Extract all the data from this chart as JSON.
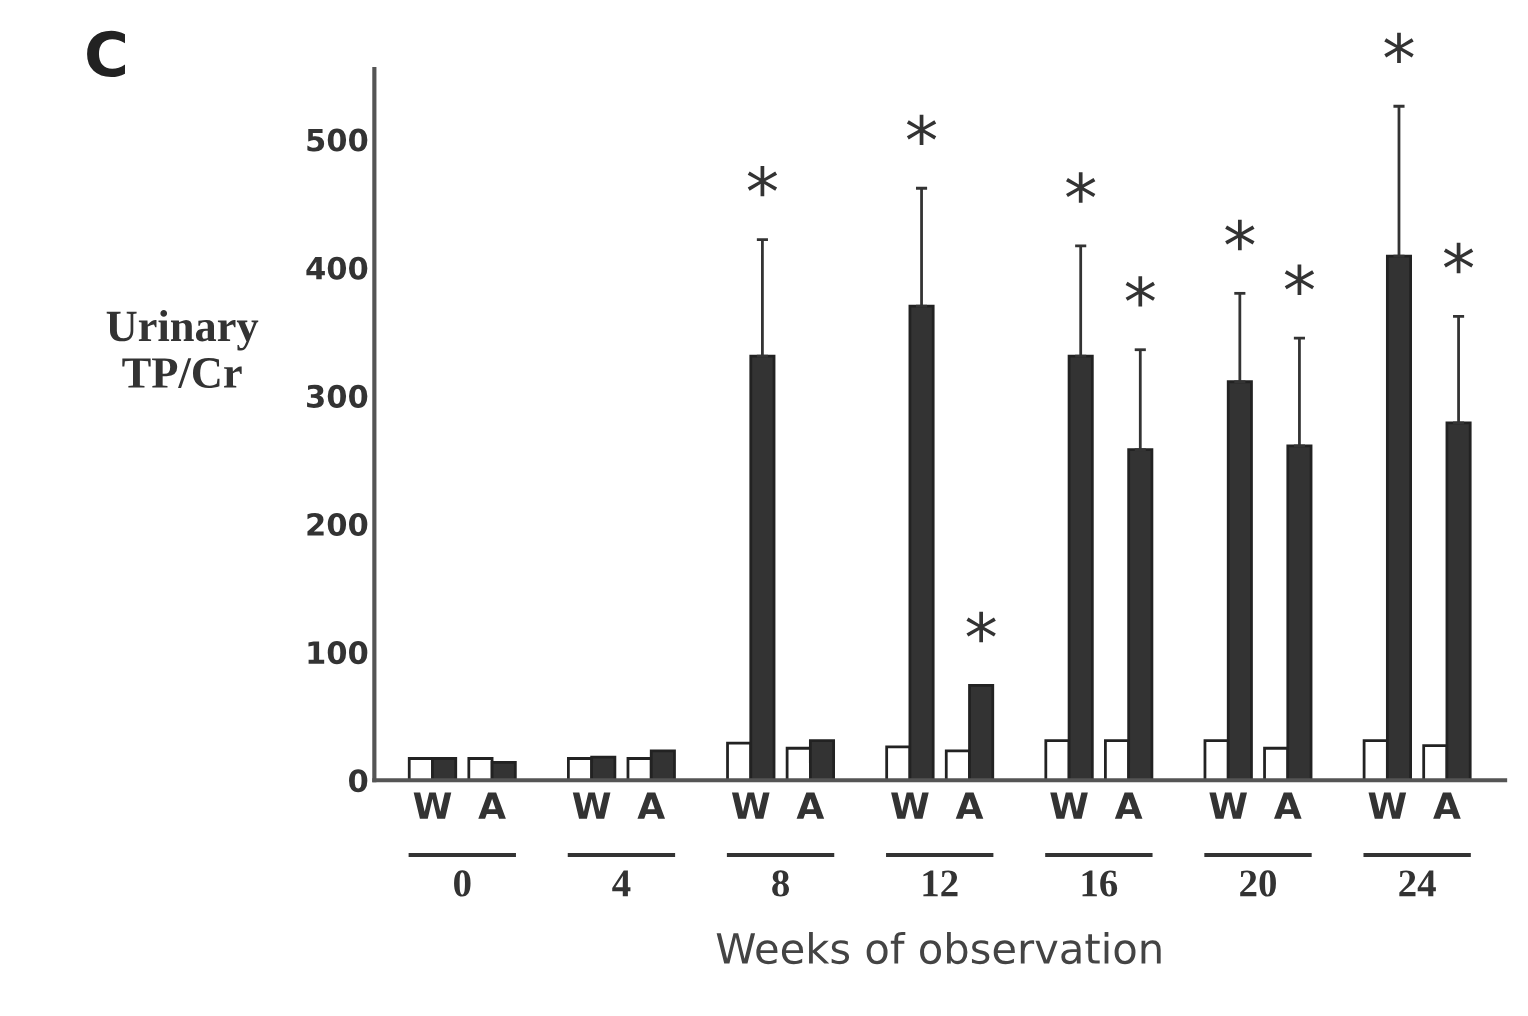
{
  "chart_data": {
    "type": "bar",
    "title": "C",
    "ylabel": "Urinary\nTP/Cr",
    "xlabel": "Weeks of observation",
    "categories": [
      "W",
      "A",
      "W",
      "A",
      "W",
      "A",
      "W",
      "A",
      "W",
      "A",
      "W",
      "A",
      "W",
      "A"
    ],
    "series": [
      {
        "color": "#ffffff",
        "values": [
          17,
          17,
          17,
          17,
          29,
          25,
          26,
          23,
          31,
          31,
          31,
          25,
          31,
          27
        ]
      },
      {
        "color": "#333333",
        "values": [
          17,
          14,
          18,
          23,
          331,
          31,
          370,
          74,
          331,
          258,
          311,
          261,
          409,
          279
        ],
        "errors": [
          null,
          null,
          null,
          null,
          [
            331,
            422
          ],
          null,
          [
            370,
            462
          ],
          null,
          [
            331,
            417
          ],
          [
            258,
            336
          ],
          [
            311,
            380
          ],
          [
            261,
            345
          ],
          [
            409,
            526
          ],
          [
            279,
            362
          ]
        ],
        "value_labels": [
          null,
          null,
          null,
          null,
          "*",
          null,
          "*",
          "*",
          "*",
          "*",
          "*",
          "*",
          "*",
          "*"
        ]
      }
    ],
    "annotations": [
      "0",
      "4",
      "8",
      "12",
      "16",
      "20",
      "24"
    ],
    "ylim": [
      0,
      555
    ],
    "yticks": [
      0,
      100,
      200,
      300,
      400,
      500
    ],
    "grid": false
  }
}
